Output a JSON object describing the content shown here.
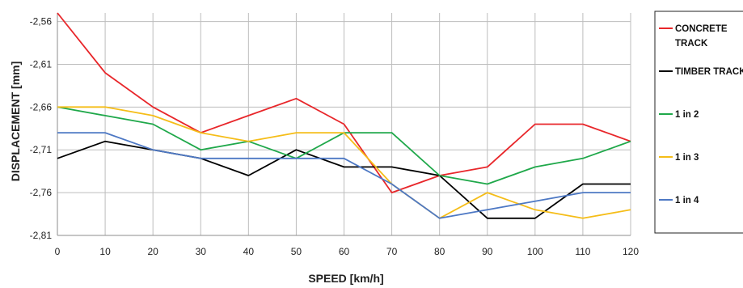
{
  "chart_data": {
    "type": "line",
    "title": "",
    "xlabel": "SPEED [km/h]",
    "ylabel": "DISPLACEMENT [mm]",
    "x": [
      0,
      10,
      20,
      30,
      40,
      50,
      60,
      70,
      80,
      90,
      100,
      110,
      120
    ],
    "x_ticks": [
      "0",
      "10",
      "20",
      "30",
      "40",
      "50",
      "60",
      "70",
      "80",
      "90",
      "100",
      "110",
      "120"
    ],
    "y_ticks": [
      "-2,56",
      "-2,61",
      "-2,66",
      "-2,71",
      "-2,76",
      "-2,81"
    ],
    "y_tick_values": [
      -2.56,
      -2.61,
      -2.66,
      -2.71,
      -2.76,
      -2.81
    ],
    "xlim": [
      0,
      120
    ],
    "ylim": [
      -2.81,
      -2.55
    ],
    "grid": true,
    "legend_position": "right",
    "series": [
      {
        "name_lines": [
          "CONCRETE",
          "TRACK"
        ],
        "color": "#e8262a",
        "values": [
          -2.55,
          -2.62,
          -2.66,
          -2.69,
          -2.67,
          -2.65,
          -2.68,
          -2.76,
          -2.74,
          -2.73,
          -2.68,
          -2.68,
          -2.7
        ]
      },
      {
        "name_lines": [
          "TIMBER TRACK"
        ],
        "color": "#000000",
        "values": [
          -2.72,
          -2.7,
          -2.71,
          -2.72,
          -2.74,
          -2.71,
          -2.73,
          -2.73,
          -2.74,
          -2.79,
          -2.79,
          -2.75,
          -2.75
        ]
      },
      {
        "name_lines": [
          "1 in 2"
        ],
        "color": "#1fa84a",
        "values": [
          -2.66,
          -2.67,
          -2.68,
          -2.71,
          -2.7,
          -2.72,
          -2.69,
          -2.69,
          -2.74,
          -2.75,
          -2.73,
          -2.72,
          -2.7
        ]
      },
      {
        "name_lines": [
          "1 in 3"
        ],
        "color": "#f5bd18",
        "values": [
          -2.66,
          -2.66,
          -2.67,
          -2.69,
          -2.7,
          -2.69,
          -2.69,
          -2.75,
          -2.79,
          -2.76,
          -2.78,
          -2.79,
          -2.78
        ]
      },
      {
        "name_lines": [
          "1 in 4"
        ],
        "color": "#4d78c4",
        "values": [
          -2.69,
          -2.69,
          -2.71,
          -2.72,
          -2.72,
          -2.72,
          -2.72,
          -2.75,
          -2.79,
          -2.78,
          -2.77,
          -2.76,
          -2.76
        ]
      }
    ]
  }
}
